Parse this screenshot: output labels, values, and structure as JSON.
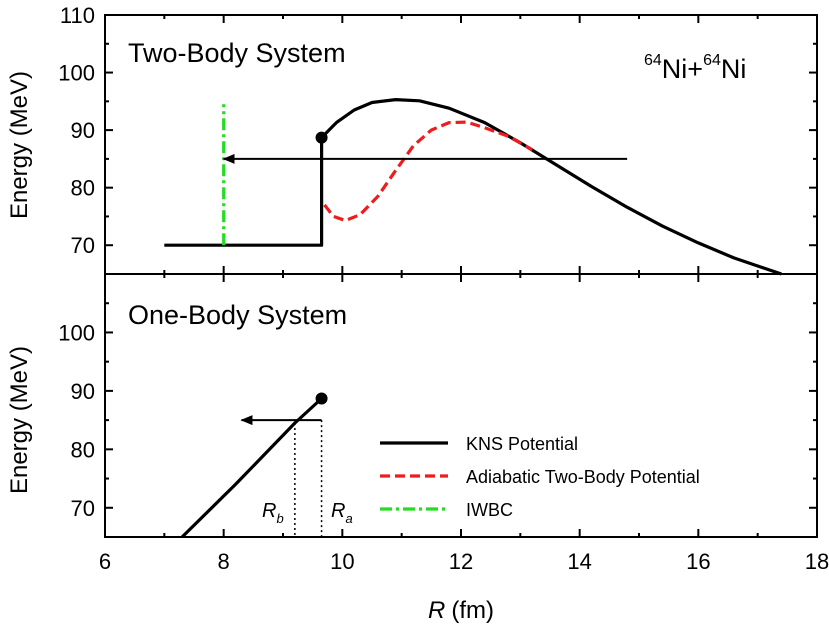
{
  "chart_data": [
    {
      "type": "line",
      "panel": "top",
      "title": "Two-Body System",
      "annotation": {
        "system": "Ni+Ni",
        "mass_number": "64",
        "nucleus": "Ni"
      },
      "ylabel": "Energy (MeV)",
      "xlim": [
        6,
        18
      ],
      "ylim": [
        65,
        110
      ],
      "y_ticks": [
        "70",
        "80",
        "90",
        "100",
        "110"
      ],
      "series": [
        {
          "name": "KNS Potential",
          "color": "#000000",
          "style": "solid",
          "segments": [
            [
              [
                7.0,
                70
              ],
              [
                9.65,
                70
              ],
              [
                9.65,
                88.7
              ]
            ],
            [
              [
                9.65,
                88.7
              ],
              [
                9.9,
                91.3
              ],
              [
                10.2,
                93.5
              ],
              [
                10.5,
                94.8
              ],
              [
                10.9,
                95.3
              ],
              [
                11.3,
                95.1
              ],
              [
                11.8,
                93.8
              ],
              [
                12.4,
                91.3
              ],
              [
                13.0,
                87.8
              ],
              [
                13.6,
                84.0
              ],
              [
                14.2,
                80.2
              ],
              [
                14.8,
                76.6
              ],
              [
                15.4,
                73.3
              ],
              [
                16.0,
                70.4
              ],
              [
                16.6,
                67.8
              ],
              [
                17.4,
                65.0
              ]
            ]
          ],
          "markers": [
            [
              9.65,
              88.7
            ]
          ]
        },
        {
          "name": "Adiabatic Two-Body Potential",
          "color": "#ee1c1c",
          "style": "dashed",
          "segments": [
            [
              [
                9.7,
                77.0
              ],
              [
                9.85,
                75.0
              ],
              [
                10.05,
                74.3
              ],
              [
                10.3,
                75.3
              ],
              [
                10.6,
                78.5
              ],
              [
                10.9,
                83.0
              ],
              [
                11.2,
                87.3
              ],
              [
                11.5,
                90.0
              ],
              [
                11.8,
                91.3
              ],
              [
                12.1,
                91.4
              ],
              [
                12.4,
                90.4
              ],
              [
                12.8,
                88.9
              ],
              [
                13.2,
                86.6
              ]
            ]
          ]
        },
        {
          "name": "IWBC",
          "color": "#22dd22",
          "style": "dashdot",
          "segments": [
            [
              [
                8.0,
                70
              ],
              [
                8.0,
                94.5
              ]
            ]
          ]
        }
      ],
      "arrows": [
        {
          "from": [
            14.8,
            85
          ],
          "to": [
            8.0,
            85
          ]
        }
      ]
    },
    {
      "type": "line",
      "panel": "bottom",
      "title": "One-Body System",
      "ylabel": "Energy (MeV)",
      "xlabel_var": "R",
      "xlabel_unit": "(fm)",
      "xlim": [
        6,
        18
      ],
      "ylim": [
        65,
        110
      ],
      "x_ticks": [
        "6",
        "8",
        "10",
        "12",
        "14",
        "16",
        "18"
      ],
      "y_ticks": [
        "70",
        "80",
        "90",
        "100"
      ],
      "series": [
        {
          "name": "KNS Potential",
          "color": "#000000",
          "style": "solid",
          "segments": [
            [
              [
                7.3,
                65.0
              ],
              [
                8.2,
                74.0
              ],
              [
                9.2,
                84.5
              ],
              [
                9.65,
                88.7
              ]
            ]
          ],
          "markers": [
            [
              9.65,
              88.7
            ]
          ]
        }
      ],
      "arrows": [
        {
          "from": [
            9.65,
            85
          ],
          "to": [
            8.3,
            85
          ]
        }
      ],
      "guides": [
        {
          "x": 9.2,
          "from_y": 84.5,
          "label_var": "R",
          "label_sub": "b"
        },
        {
          "x": 9.65,
          "from_y": 85,
          "label_var": "R",
          "label_sub": "a"
        }
      ]
    }
  ],
  "legend": {
    "placement": "bottom-right",
    "entries": [
      {
        "label": "KNS Potential",
        "color": "#000000",
        "style": "solid"
      },
      {
        "label": "Adiabatic Two-Body Potential",
        "color": "#ee1c1c",
        "style": "dashed"
      },
      {
        "label": "IWBC",
        "color": "#22dd22",
        "style": "dashdot"
      }
    ]
  }
}
